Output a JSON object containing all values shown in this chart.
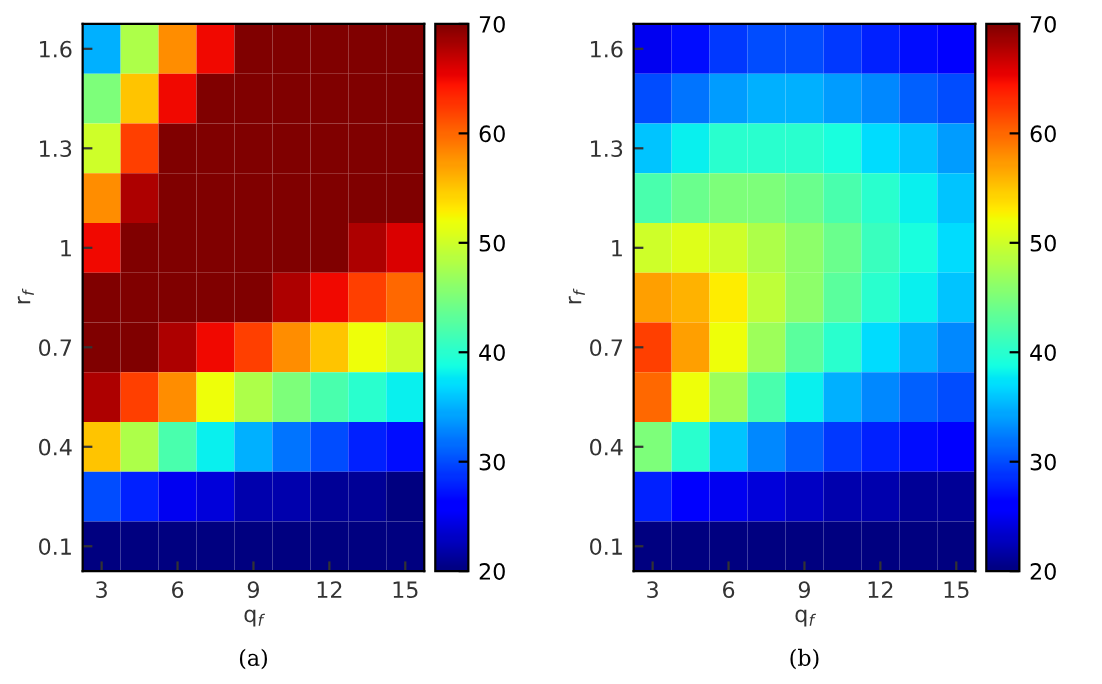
{
  "chart_data": [
    {
      "type": "heatmap",
      "xlabel": "q$_{f}$",
      "ylabel": "r$_{f}$",
      "annotations": [
        "(a)"
      ],
      "categories": [
        "3",
        null,
        "6",
        null,
        "9",
        null,
        "12",
        null,
        "15"
      ],
      "y_categories": [
        "1.6",
        null,
        "1.3",
        null,
        "1",
        null,
        "0.7",
        null,
        "0.4",
        null,
        "0.1"
      ],
      "cells": [
        [
          35,
          48,
          58,
          65,
          70,
          70,
          70,
          70,
          70
        ],
        [
          45,
          55,
          65,
          70,
          70,
          70,
          70,
          70,
          70
        ],
        [
          50,
          62,
          70,
          70,
          70,
          70,
          70,
          70,
          70
        ],
        [
          58,
          68,
          70,
          70,
          70,
          70,
          70,
          70,
          70
        ],
        [
          65,
          70,
          70,
          70,
          70,
          70,
          70,
          68,
          66
        ],
        [
          70,
          70,
          70,
          70,
          70,
          68,
          65,
          62,
          60
        ],
        [
          70,
          70,
          68,
          65,
          62,
          58,
          55,
          52,
          50
        ],
        [
          68,
          62,
          58,
          52,
          48,
          45,
          42,
          40,
          38
        ],
        [
          55,
          48,
          42,
          38,
          35,
          32,
          30,
          28,
          27
        ],
        [
          30,
          28,
          25,
          24,
          22,
          22,
          21,
          21,
          20
        ],
        [
          20,
          20,
          20,
          20,
          20,
          20,
          20,
          20,
          20
        ]
      ],
      "clim": [
        20,
        70
      ],
      "cticks": [
        20,
        30,
        40,
        50,
        60,
        70
      ]
    },
    {
      "type": "heatmap",
      "xlabel": "q$_{f}$",
      "ylabel": "r$_{f}$",
      "annotations": [
        "(b)"
      ],
      "categories": [
        "3",
        null,
        "6",
        null,
        "9",
        null,
        "12",
        null,
        "15"
      ],
      "y_categories": [
        "1.6",
        null,
        "1.3",
        null,
        "1",
        null,
        "0.7",
        null,
        "0.4",
        null,
        "0.1"
      ],
      "cells": [
        [
          25,
          27,
          29,
          30,
          30,
          29,
          28,
          27,
          26
        ],
        [
          30,
          32,
          34,
          35,
          35,
          34,
          33,
          31,
          30
        ],
        [
          36,
          38,
          40,
          40,
          40,
          39,
          37,
          36,
          34
        ],
        [
          42,
          44,
          45,
          45,
          44,
          42,
          40,
          38,
          36
        ],
        [
          50,
          51,
          50,
          48,
          46,
          44,
          41,
          39,
          37
        ],
        [
          57,
          56,
          53,
          49,
          46,
          43,
          40,
          38,
          36
        ],
        [
          62,
          57,
          52,
          47,
          43,
          40,
          37,
          35,
          33
        ],
        [
          60,
          52,
          47,
          42,
          38,
          35,
          33,
          31,
          30
        ],
        [
          45,
          40,
          36,
          33,
          31,
          29,
          28,
          27,
          26
        ],
        [
          28,
          26,
          25,
          24,
          23,
          22,
          22,
          21,
          21
        ],
        [
          20,
          20,
          20,
          20,
          20,
          20,
          20,
          20,
          20
        ]
      ],
      "clim": [
        20,
        70
      ],
      "cticks": [
        20,
        30,
        40,
        50,
        60,
        70
      ]
    }
  ]
}
